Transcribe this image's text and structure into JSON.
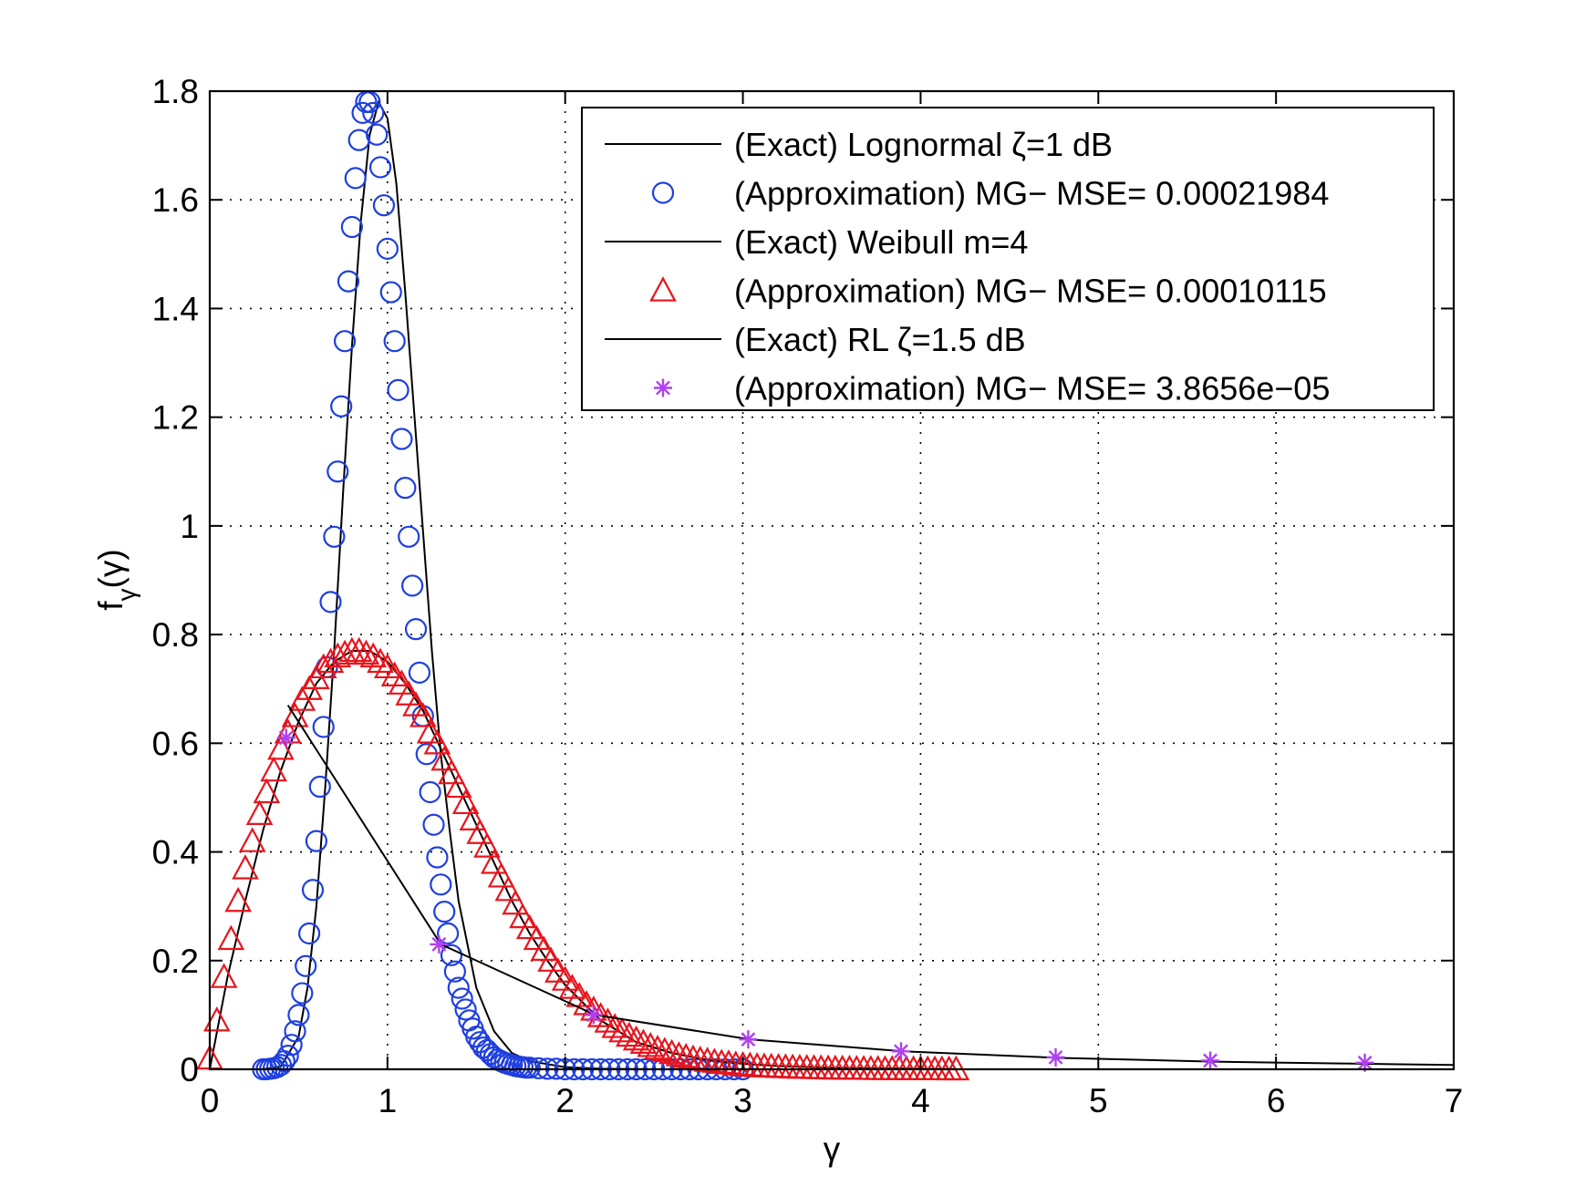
{
  "chart_data": {
    "type": "line",
    "xlabel": "γ",
    "ylabel_main": "f",
    "ylabel_sub": "γ",
    "ylabel_paren": "(γ)",
    "xlim": [
      0,
      7
    ],
    "ylim": [
      0,
      1.8
    ],
    "xticks": [
      0,
      1,
      2,
      3,
      4,
      5,
      6,
      7
    ],
    "xtick_labels": [
      "0",
      "1",
      "2",
      "3",
      "4",
      "5",
      "6",
      "7"
    ],
    "yticks": [
      0,
      0.2,
      0.4,
      0.6,
      0.8,
      1,
      1.2,
      1.4,
      1.6,
      1.8
    ],
    "ytick_labels": [
      "0",
      "0.2",
      "0.4",
      "0.6",
      "0.8",
      "1",
      "1.2",
      "1.4",
      "1.6",
      "1.8"
    ],
    "grid": true,
    "legend_position": "top-right",
    "legend": [
      "(Exact) Lognormal ζ=1 dB",
      "(Approximation) MG− MSE= 0.00021984",
      "(Exact) Weibull m=4",
      "(Approximation) MG− MSE= 0.00010115",
      "(Exact) RL ζ=1.5 dB",
      "(Approximation) MG− MSE= 3.8656e−05"
    ],
    "colors": {
      "exact": "#000000",
      "lognormal_marker": "#1f3fe0",
      "weibull_marker": "#e8141c",
      "rl_marker": "#b040f0"
    },
    "series": [
      {
        "style": "line",
        "x": [
          0.3,
          0.4,
          0.5,
          0.55,
          0.6,
          0.65,
          0.7,
          0.75,
          0.8,
          0.85,
          0.9,
          0.95,
          1.0,
          1.05,
          1.1,
          1.15,
          1.2,
          1.25,
          1.3,
          1.35,
          1.4,
          1.5,
          1.6,
          1.7,
          1.8,
          2.0,
          2.2,
          2.5,
          3.0
        ],
        "y": [
          0.0,
          0.005,
          0.06,
          0.15,
          0.3,
          0.52,
          0.77,
          1.06,
          1.33,
          1.56,
          1.72,
          1.78,
          1.75,
          1.63,
          1.43,
          1.21,
          0.99,
          0.77,
          0.58,
          0.44,
          0.31,
          0.15,
          0.07,
          0.03,
          0.015,
          0.004,
          0.001,
          0.0,
          0.0
        ]
      },
      {
        "style": "marker",
        "marker": "circle",
        "x": [
          0.3,
          0.32,
          0.34,
          0.36,
          0.38,
          0.4,
          0.42,
          0.44,
          0.46,
          0.48,
          0.5,
          0.52,
          0.54,
          0.56,
          0.58,
          0.6,
          0.62,
          0.64,
          0.66,
          0.68,
          0.7,
          0.72,
          0.74,
          0.76,
          0.78,
          0.8,
          0.82,
          0.84,
          0.86,
          0.88,
          0.9,
          0.92,
          0.94,
          0.96,
          0.98,
          1.0,
          1.02,
          1.04,
          1.06,
          1.08,
          1.1,
          1.12,
          1.14,
          1.16,
          1.18,
          1.2,
          1.22,
          1.24,
          1.26,
          1.28,
          1.3,
          1.32,
          1.34,
          1.36,
          1.38,
          1.4,
          1.42,
          1.44,
          1.46,
          1.48,
          1.5,
          1.52,
          1.54,
          1.56,
          1.58,
          1.6,
          1.62,
          1.64,
          1.66,
          1.68,
          1.7,
          1.72,
          1.74,
          1.76,
          1.78,
          1.8,
          1.85,
          1.9,
          1.95,
          2.0,
          2.05,
          2.1,
          2.15,
          2.2,
          2.25,
          2.3,
          2.35,
          2.4,
          2.45,
          2.5,
          2.55,
          2.6,
          2.65,
          2.7,
          2.75,
          2.8,
          2.85,
          2.9,
          2.95,
          3.0
        ],
        "y": [
          0.0,
          0.0,
          0.001,
          0.002,
          0.004,
          0.008,
          0.015,
          0.025,
          0.045,
          0.07,
          0.1,
          0.14,
          0.19,
          0.25,
          0.33,
          0.42,
          0.52,
          0.63,
          0.74,
          0.86,
          0.98,
          1.1,
          1.22,
          1.34,
          1.45,
          1.55,
          1.64,
          1.71,
          1.76,
          1.78,
          1.78,
          1.76,
          1.72,
          1.66,
          1.59,
          1.51,
          1.43,
          1.34,
          1.25,
          1.16,
          1.07,
          0.98,
          0.89,
          0.81,
          0.73,
          0.65,
          0.58,
          0.51,
          0.45,
          0.39,
          0.34,
          0.29,
          0.25,
          0.21,
          0.18,
          0.15,
          0.13,
          0.11,
          0.09,
          0.075,
          0.06,
          0.05,
          0.04,
          0.035,
          0.028,
          0.022,
          0.018,
          0.015,
          0.012,
          0.01,
          0.008,
          0.006,
          0.005,
          0.004,
          0.003,
          0.003,
          0.002,
          0.001,
          0.001,
          0.0,
          0.0,
          0.0,
          0.0,
          0.0,
          0.0,
          0.0,
          0.0,
          0.0,
          0.0,
          0.0,
          0.0,
          0.0,
          0.0,
          0.0,
          0.0,
          0.0,
          0.0,
          0.0,
          0.0,
          0.0
        ]
      },
      {
        "style": "line",
        "x": [
          0.0,
          0.1,
          0.2,
          0.3,
          0.4,
          0.5,
          0.6,
          0.7,
          0.8,
          0.9,
          1.0,
          1.1,
          1.2,
          1.3,
          1.4,
          1.5,
          1.6,
          1.7,
          1.8,
          1.9,
          2.0,
          2.2,
          2.4,
          2.6,
          2.8,
          3.0,
          3.2,
          3.5,
          4.0,
          4.25
        ],
        "y": [
          0.0,
          0.17,
          0.31,
          0.44,
          0.55,
          0.64,
          0.71,
          0.75,
          0.77,
          0.77,
          0.75,
          0.71,
          0.66,
          0.59,
          0.52,
          0.45,
          0.38,
          0.31,
          0.25,
          0.2,
          0.155,
          0.09,
          0.05,
          0.03,
          0.017,
          0.01,
          0.006,
          0.003,
          0.001,
          0.0
        ]
      },
      {
        "style": "marker",
        "marker": "triangle",
        "x": [
          0.0,
          0.04,
          0.08,
          0.12,
          0.16,
          0.2,
          0.24,
          0.28,
          0.32,
          0.36,
          0.4,
          0.44,
          0.48,
          0.52,
          0.56,
          0.6,
          0.64,
          0.68,
          0.72,
          0.76,
          0.8,
          0.84,
          0.88,
          0.92,
          0.96,
          1.0,
          1.04,
          1.08,
          1.12,
          1.16,
          1.2,
          1.24,
          1.28,
          1.32,
          1.36,
          1.4,
          1.44,
          1.48,
          1.52,
          1.56,
          1.6,
          1.64,
          1.68,
          1.72,
          1.76,
          1.8,
          1.84,
          1.88,
          1.92,
          1.96,
          2.0,
          2.04,
          2.08,
          2.12,
          2.16,
          2.2,
          2.24,
          2.28,
          2.32,
          2.36,
          2.4,
          2.44,
          2.48,
          2.52,
          2.56,
          2.6,
          2.64,
          2.68,
          2.72,
          2.76,
          2.8,
          2.84,
          2.88,
          2.92,
          2.96,
          3.0,
          3.04,
          3.08,
          3.12,
          3.16,
          3.2,
          3.24,
          3.28,
          3.32,
          3.36,
          3.4,
          3.44,
          3.48,
          3.52,
          3.56,
          3.6,
          3.64,
          3.68,
          3.72,
          3.76,
          3.8,
          3.84,
          3.88,
          3.92,
          3.96,
          4.0,
          4.04,
          4.08,
          4.12,
          4.16,
          4.2
        ],
        "y": [
          0.02,
          0.09,
          0.17,
          0.24,
          0.31,
          0.37,
          0.42,
          0.47,
          0.51,
          0.55,
          0.59,
          0.62,
          0.65,
          0.68,
          0.7,
          0.72,
          0.74,
          0.75,
          0.76,
          0.765,
          0.77,
          0.77,
          0.765,
          0.76,
          0.75,
          0.74,
          0.725,
          0.71,
          0.69,
          0.67,
          0.65,
          0.62,
          0.6,
          0.57,
          0.545,
          0.52,
          0.49,
          0.46,
          0.435,
          0.41,
          0.38,
          0.355,
          0.33,
          0.305,
          0.28,
          0.26,
          0.24,
          0.22,
          0.2,
          0.18,
          0.165,
          0.15,
          0.135,
          0.12,
          0.11,
          0.098,
          0.088,
          0.078,
          0.07,
          0.062,
          0.055,
          0.049,
          0.043,
          0.038,
          0.034,
          0.03,
          0.026,
          0.023,
          0.02,
          0.018,
          0.016,
          0.014,
          0.012,
          0.011,
          0.009,
          0.008,
          0.007,
          0.006,
          0.0055,
          0.005,
          0.0045,
          0.004,
          0.0035,
          0.003,
          0.0027,
          0.0024,
          0.0021,
          0.0018,
          0.0016,
          0.0014,
          0.0012,
          0.001,
          0.001,
          0.0008,
          0.0007,
          0.0006,
          0.0005,
          0.0004,
          0.0004,
          0.0003,
          0.0003,
          0.0002,
          0.0002,
          0.0002,
          0.0001,
          0.0001
        ]
      },
      {
        "style": "line",
        "x": [
          0.44,
          1.3,
          2.17,
          3.04,
          3.91,
          4.78,
          5.65,
          6.52,
          7.0
        ],
        "y": [
          0.67,
          0.23,
          0.1,
          0.055,
          0.033,
          0.021,
          0.014,
          0.01,
          0.008
        ]
      },
      {
        "style": "marker",
        "marker": "asterisk",
        "x": [
          0.43,
          1.29,
          2.16,
          3.03,
          3.89,
          4.76,
          5.63,
          6.5
        ],
        "y": [
          0.61,
          0.23,
          0.1,
          0.055,
          0.033,
          0.022,
          0.016,
          0.012
        ]
      }
    ]
  }
}
